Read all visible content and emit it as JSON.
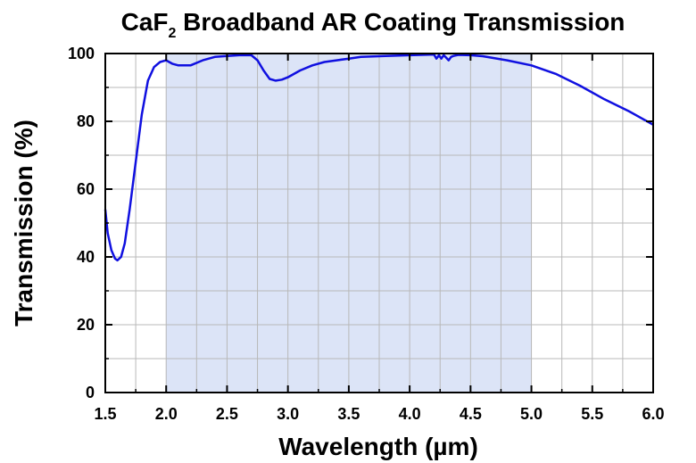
{
  "chart_data": {
    "type": "line",
    "title": {
      "pre": "CaF",
      "sub": "2",
      "post": " Broadband AR Coating Transmission"
    },
    "xlabel": "Wavelength (µm)",
    "ylabel": "Transmission (%)",
    "xlim": [
      1.5,
      6.0
    ],
    "ylim": [
      0,
      100
    ],
    "xticks": [
      "1.5",
      "2.0",
      "2.5",
      "3.0",
      "3.5",
      "4.0",
      "4.5",
      "5.0",
      "5.5",
      "6.0"
    ],
    "yticks": [
      "0",
      "20",
      "40",
      "60",
      "80",
      "100"
    ],
    "grid": true,
    "shaded_range": [
      2.0,
      5.0
    ],
    "shade_color": "#dce4f7",
    "line_color": "#1010e0",
    "series": [
      {
        "x": [
          1.5,
          1.52,
          1.55,
          1.58,
          1.6,
          1.63,
          1.66,
          1.7,
          1.75,
          1.8,
          1.85,
          1.9,
          1.95,
          2.0,
          2.05,
          2.1,
          2.2,
          2.3,
          2.4,
          2.5,
          2.6,
          2.7,
          2.75,
          2.8,
          2.85,
          2.9,
          2.95,
          3.0,
          3.1,
          3.2,
          3.3,
          3.4,
          3.5,
          3.6,
          3.8,
          4.0,
          4.2,
          4.22,
          4.24,
          4.26,
          4.28,
          4.3,
          4.32,
          4.34,
          4.36,
          4.4,
          4.5,
          4.6,
          4.8,
          5.0,
          5.2,
          5.4,
          5.6,
          5.8,
          6.0
        ],
        "y": [
          54,
          47,
          42,
          39.5,
          39,
          40,
          44,
          54,
          68,
          82,
          92,
          96,
          97.5,
          98,
          97,
          96.5,
          96.5,
          98,
          99,
          99.3,
          99.5,
          99.5,
          98,
          95,
          92.5,
          92,
          92.3,
          93,
          95,
          96.5,
          97.5,
          98,
          98.5,
          99,
          99.3,
          99.5,
          99.7,
          98.5,
          99.5,
          98.5,
          99.5,
          98.8,
          98,
          99,
          99.3,
          99.6,
          99.5,
          99.2,
          98,
          96.5,
          94,
          90.5,
          86.5,
          83,
          79
        ]
      }
    ]
  }
}
